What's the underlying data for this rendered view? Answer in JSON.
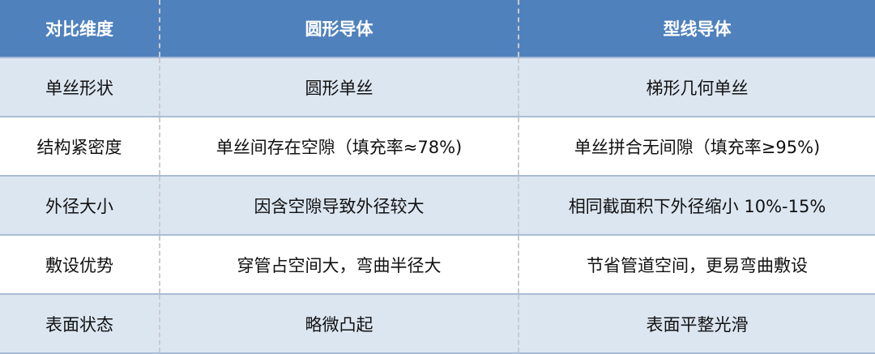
{
  "headers": [
    "对比维度",
    "圆形导体",
    "型线导体"
  ],
  "rows": [
    [
      "单丝形状",
      "圆形单丝",
      "梯形几何单丝"
    ],
    [
      "结构紧密度",
      "单丝间存在空隙（填充率≈78%)",
      "单丝拼合无间隙（填充率≥95%)"
    ],
    [
      "外径大小",
      "因含空隙导致外径较大",
      "相同截面积下外径缩小 10%-15%"
    ],
    [
      "敷设优势",
      "穿管占空间大，弯曲半径大",
      "节省管道空间，更易弯曲敷设"
    ],
    [
      "表面状态",
      "略微凸起",
      "表面平整光滑"
    ]
  ],
  "colors": {
    "header": "#4F81BD",
    "band": "#DCE6F1"
  }
}
